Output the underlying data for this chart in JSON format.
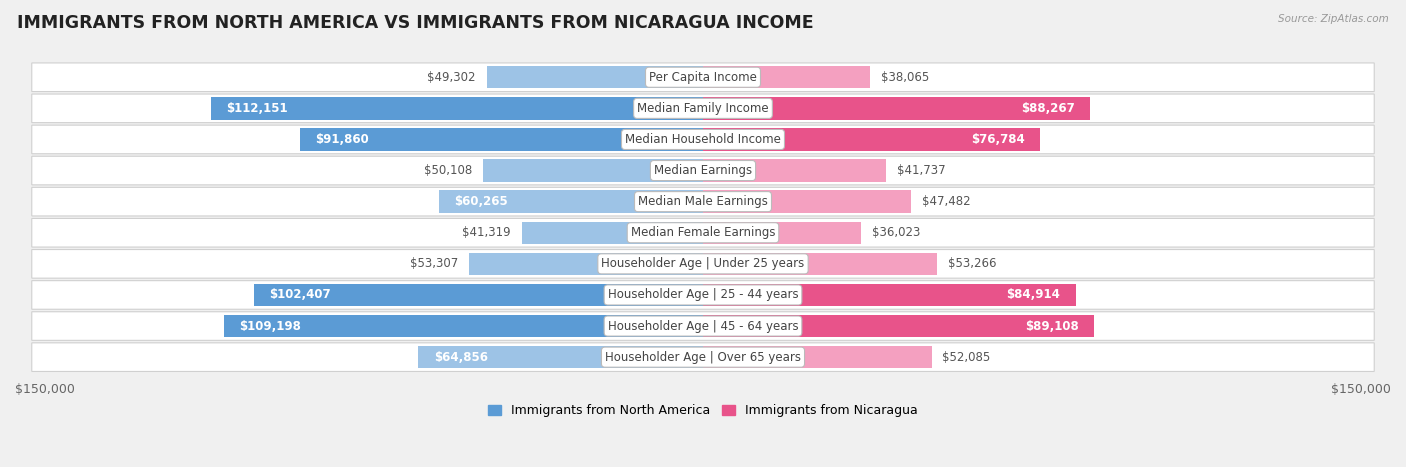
{
  "title": "IMMIGRANTS FROM NORTH AMERICA VS IMMIGRANTS FROM NICARAGUA INCOME",
  "source": "Source: ZipAtlas.com",
  "categories": [
    "Per Capita Income",
    "Median Family Income",
    "Median Household Income",
    "Median Earnings",
    "Median Male Earnings",
    "Median Female Earnings",
    "Householder Age | Under 25 years",
    "Householder Age | 25 - 44 years",
    "Householder Age | 45 - 64 years",
    "Householder Age | Over 65 years"
  ],
  "north_america_values": [
    49302,
    112151,
    91860,
    50108,
    60265,
    41319,
    53307,
    102407,
    109198,
    64856
  ],
  "nicaragua_values": [
    38065,
    88267,
    76784,
    41737,
    47482,
    36023,
    53266,
    84914,
    89108,
    52085
  ],
  "north_america_color_strong": "#5b9bd5",
  "north_america_color_light": "#9dc3e6",
  "nicaragua_color_strong": "#e8538a",
  "nicaragua_color_light": "#f4a0c0",
  "north_america_label": "Immigrants from North America",
  "nicaragua_label": "Immigrants from Nicaragua",
  "axis_limit": 150000,
  "strong_threshold": 75000,
  "background_color": "#f0f0f0",
  "row_color": "#ffffff",
  "title_fontsize": 12.5,
  "label_fontsize": 8.5,
  "value_fontsize": 8.5,
  "legend_fontsize": 9,
  "axis_label_fontsize": 9
}
